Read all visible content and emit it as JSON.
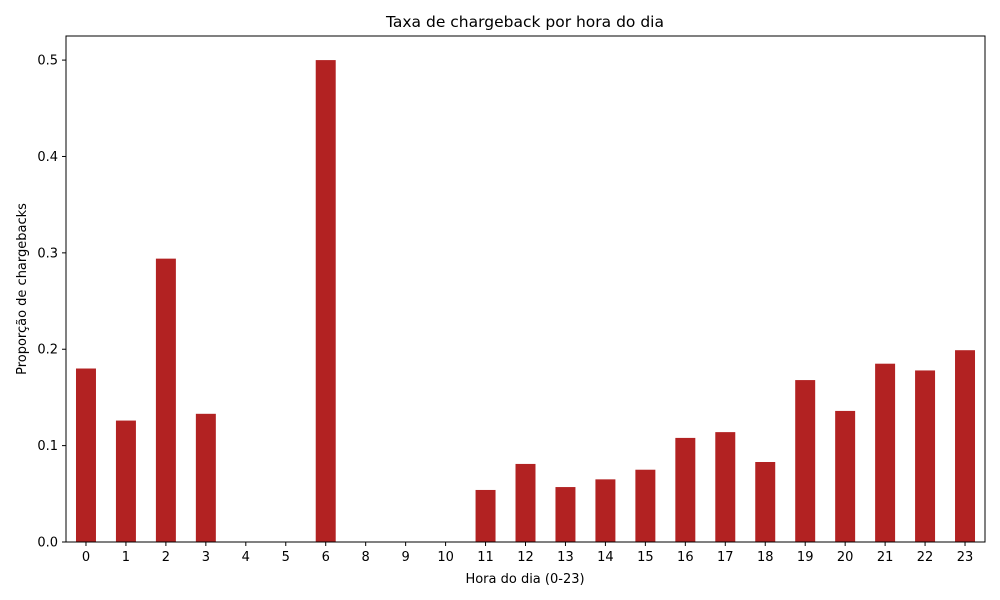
{
  "chart_data": {
    "type": "bar",
    "title": "Taxa de chargeback por hora do dia",
    "xlabel": "Hora do dia (0-23)",
    "ylabel": "Proporção de chargebacks",
    "categories": [
      "0",
      "1",
      "2",
      "3",
      "4",
      "5",
      "6",
      "8",
      "9",
      "10",
      "11",
      "12",
      "13",
      "14",
      "15",
      "16",
      "17",
      "18",
      "19",
      "20",
      "21",
      "22",
      "23"
    ],
    "values": [
      0.18,
      0.126,
      0.294,
      0.133,
      0.0,
      0.0,
      0.5,
      0.0,
      0.0,
      0.0,
      0.054,
      0.081,
      0.057,
      0.065,
      0.075,
      0.108,
      0.114,
      0.083,
      0.168,
      0.136,
      0.185,
      0.178,
      0.199
    ],
    "ylim": [
      0,
      0.525
    ],
    "yticks": [
      0.0,
      0.1,
      0.2,
      0.3,
      0.4,
      0.5
    ],
    "ytick_labels": [
      "0.0",
      "0.1",
      "0.2",
      "0.3",
      "0.4",
      "0.5"
    ],
    "bar_color": "#b22222",
    "grid": false,
    "legend": false
  }
}
